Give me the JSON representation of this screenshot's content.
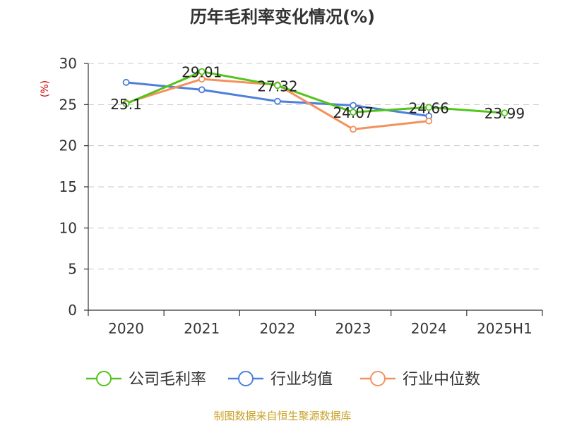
{
  "chart_data": {
    "type": "line",
    "title": "历年毛利率变化情况(%)",
    "ylabel": "(%)",
    "xlabel": "",
    "categories": [
      "2020",
      "2021",
      "2022",
      "2023",
      "2024",
      "2025H1"
    ],
    "ylim": [
      0,
      30
    ],
    "yticks": [
      0,
      5,
      10,
      15,
      20,
      25,
      30
    ],
    "grid": true,
    "legend_position": "bottom",
    "series": [
      {
        "name": "公司毛利率",
        "color": "#52c41a",
        "values": [
          25.1,
          29.01,
          27.32,
          24.07,
          24.66,
          23.99
        ],
        "labels": [
          "25.1",
          "29.01",
          "27.32",
          "24.07",
          "24.66",
          "23.99"
        ]
      },
      {
        "name": "行业均值",
        "color": "#4e7fdc",
        "values": [
          27.7,
          26.8,
          25.4,
          24.9,
          23.6,
          null
        ]
      },
      {
        "name": "行业中位数",
        "color": "#f4915b",
        "values": [
          25.2,
          28.1,
          27.4,
          22.0,
          23.0,
          null
        ]
      }
    ]
  },
  "source": "制图数据来自恒生聚源数据库"
}
